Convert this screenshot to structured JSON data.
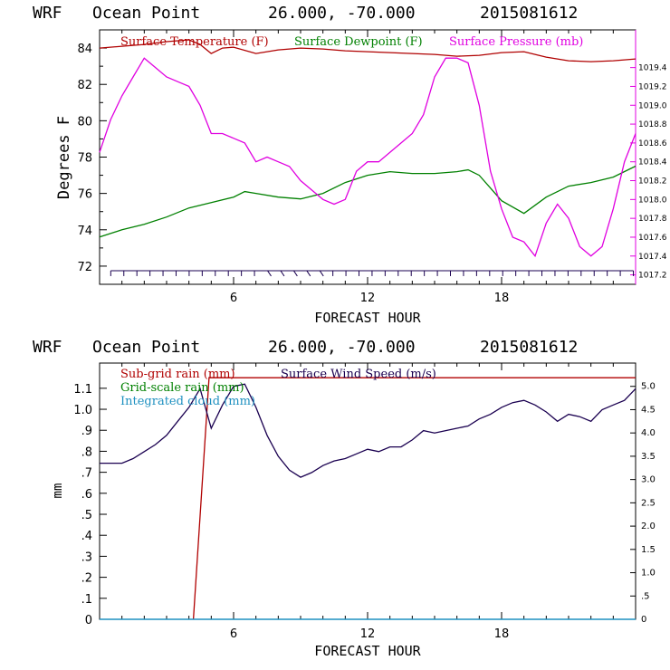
{
  "chart_data": [
    {
      "type": "line",
      "header": {
        "model": "WRF",
        "location": "Ocean Point",
        "coords": "26.000, -70.000",
        "run": "2015081612"
      },
      "xlabel": "FORECAST HOUR",
      "ylabel": "Degrees F",
      "xlim": [
        0,
        24
      ],
      "ylim": [
        71,
        85
      ],
      "xticks": [
        6,
        12,
        18
      ],
      "yticks": [
        72,
        74,
        76,
        78,
        80,
        82,
        84
      ],
      "y2lim": [
        1017.1,
        1019.8
      ],
      "y2ticks": [
        "1017.2",
        "1017.4",
        "1017.6",
        "1017.8",
        "1018.0",
        "1018.2",
        "1018.4",
        "1018.6",
        "1018.8",
        "1019.0",
        "1019.2",
        "1019.4"
      ],
      "colors": {
        "temperature": "#b00000",
        "dewpoint": "#008000",
        "pressure": "#e000e0",
        "barbs": "#1a0050"
      },
      "legend": [
        "Surface Temperature (F)",
        "Surface Dewpoint (F)",
        "Surface Pressure (mb)"
      ],
      "series": [
        {
          "name": "Surface Temperature (F)",
          "axis": "left",
          "x": [
            0,
            1,
            2,
            3,
            4,
            4.5,
            5,
            5.5,
            6,
            7,
            8,
            9,
            10,
            11,
            12,
            13,
            14,
            15,
            16,
            17,
            18,
            19,
            20,
            21,
            22,
            23,
            24
          ],
          "y": [
            84.0,
            84.1,
            84.2,
            84.35,
            84.45,
            84.2,
            83.7,
            84.0,
            84.05,
            83.7,
            83.9,
            84.0,
            83.95,
            83.85,
            83.8,
            83.75,
            83.7,
            83.65,
            83.55,
            83.6,
            83.75,
            83.8,
            83.5,
            83.3,
            83.25,
            83.3,
            83.4
          ]
        },
        {
          "name": "Surface Dewpoint (F)",
          "axis": "left",
          "x": [
            0,
            1,
            2,
            3,
            4,
            5,
            6,
            6.5,
            7,
            8,
            9,
            10,
            11,
            12,
            13,
            14,
            15,
            16,
            16.5,
            17,
            18,
            19,
            20,
            21,
            22,
            23,
            24
          ],
          "y": [
            73.6,
            74.0,
            74.3,
            74.7,
            75.2,
            75.5,
            75.8,
            76.1,
            76.0,
            75.8,
            75.7,
            76.0,
            76.6,
            77.0,
            77.2,
            77.1,
            77.1,
            77.2,
            77.3,
            77.0,
            75.6,
            74.9,
            75.8,
            76.4,
            76.6,
            76.9,
            77.5
          ]
        },
        {
          "name": "Surface Pressure (mb)",
          "axis": "right",
          "x": [
            0,
            0.5,
            1,
            1.5,
            2,
            2.5,
            3,
            3.5,
            4,
            4.5,
            5,
            5.5,
            6,
            6.5,
            7,
            7.5,
            8,
            8.5,
            9,
            9.5,
            10,
            10.5,
            11,
            11.5,
            12,
            12.5,
            13,
            13.5,
            14,
            14.5,
            15,
            15.5,
            16,
            16.5,
            17,
            17.5,
            18,
            18.5,
            19,
            19.5,
            20,
            20.5,
            21,
            21.5,
            22,
            22.5,
            23,
            23.5,
            24
          ],
          "y": [
            1018.5,
            1018.85,
            1019.1,
            1019.3,
            1019.5,
            1019.4,
            1019.3,
            1019.25,
            1019.2,
            1019.0,
            1018.7,
            1018.7,
            1018.65,
            1018.6,
            1018.4,
            1018.45,
            1018.4,
            1018.35,
            1018.2,
            1018.1,
            1018.0,
            1017.95,
            1018.0,
            1018.3,
            1018.4,
            1018.4,
            1018.5,
            1018.6,
            1018.7,
            1018.9,
            1019.3,
            1019.5,
            1019.5,
            1019.45,
            1019.0,
            1018.3,
            1017.9,
            1017.6,
            1017.55,
            1017.4,
            1017.75,
            1017.95,
            1017.8,
            1017.5,
            1017.4,
            1017.5,
            1017.9,
            1018.4,
            1018.7
          ]
        }
      ]
    },
    {
      "type": "line",
      "header": {
        "model": "WRF",
        "location": "Ocean Point",
        "coords": "26.000, -70.000",
        "run": "2015081612"
      },
      "xlabel": "FORECAST HOUR",
      "ylabel": "mm",
      "xlim": [
        0,
        24
      ],
      "ylim": [
        0,
        1.22
      ],
      "xticks": [
        6,
        12,
        18
      ],
      "yticks": [
        "0",
        ".1",
        ".2",
        ".3",
        ".4",
        ".5",
        ".6",
        ".7",
        ".8",
        ".9",
        "1.0",
        "1.1"
      ],
      "y2lim": [
        0,
        5.5
      ],
      "y2ticks": [
        "0",
        ".5",
        "1.0",
        "1.5",
        "2.0",
        "2.5",
        "3.0",
        "3.5",
        "4.0",
        "4.5",
        "5.0"
      ],
      "colors": {
        "subgrid": "#b00000",
        "gridscale": "#008000",
        "cloud": "#1e90c0",
        "wind": "#1a0050"
      },
      "legend": [
        "Sub-grid rain (mm)",
        "Grid-scale rain (mm)",
        "Integrated cloud (mm)",
        "Surface Wind Speed (m/s)"
      ],
      "series": [
        {
          "name": "Sub-grid rain (mm)",
          "axis": "left",
          "x": [
            4.2,
            4.9,
            24
          ],
          "y": [
            0,
            1.15,
            1.15
          ]
        },
        {
          "name": "Integrated cloud (mm)",
          "axis": "left",
          "x": [
            0,
            24
          ],
          "y": [
            0,
            0
          ]
        },
        {
          "name": "Surface Wind Speed (m/s)",
          "axis": "right",
          "x": [
            0,
            1,
            1.5,
            2,
            2.5,
            3,
            3.5,
            4,
            4.5,
            5,
            5.5,
            6,
            6.5,
            7,
            7.5,
            8,
            8.5,
            9,
            9.5,
            10,
            10.5,
            11,
            11.5,
            12,
            12.5,
            13,
            13.5,
            14,
            14.5,
            15,
            15.5,
            16,
            16.5,
            17,
            17.5,
            18,
            18.5,
            19,
            19.5,
            20,
            20.5,
            21,
            21.5,
            22,
            22.5,
            23,
            23.5,
            24
          ],
          "y": [
            3.35,
            3.35,
            3.45,
            3.6,
            3.75,
            3.95,
            4.25,
            4.55,
            4.95,
            4.1,
            4.6,
            5.0,
            5.05,
            4.55,
            3.95,
            3.5,
            3.2,
            3.05,
            3.15,
            3.3,
            3.4,
            3.45,
            3.55,
            3.65,
            3.6,
            3.7,
            3.7,
            3.85,
            4.05,
            4.0,
            4.05,
            4.1,
            4.15,
            4.3,
            4.4,
            4.55,
            4.65,
            4.7,
            4.6,
            4.45,
            4.25,
            4.4,
            4.35,
            4.25,
            4.5,
            4.6,
            4.7,
            4.95
          ]
        }
      ]
    }
  ]
}
